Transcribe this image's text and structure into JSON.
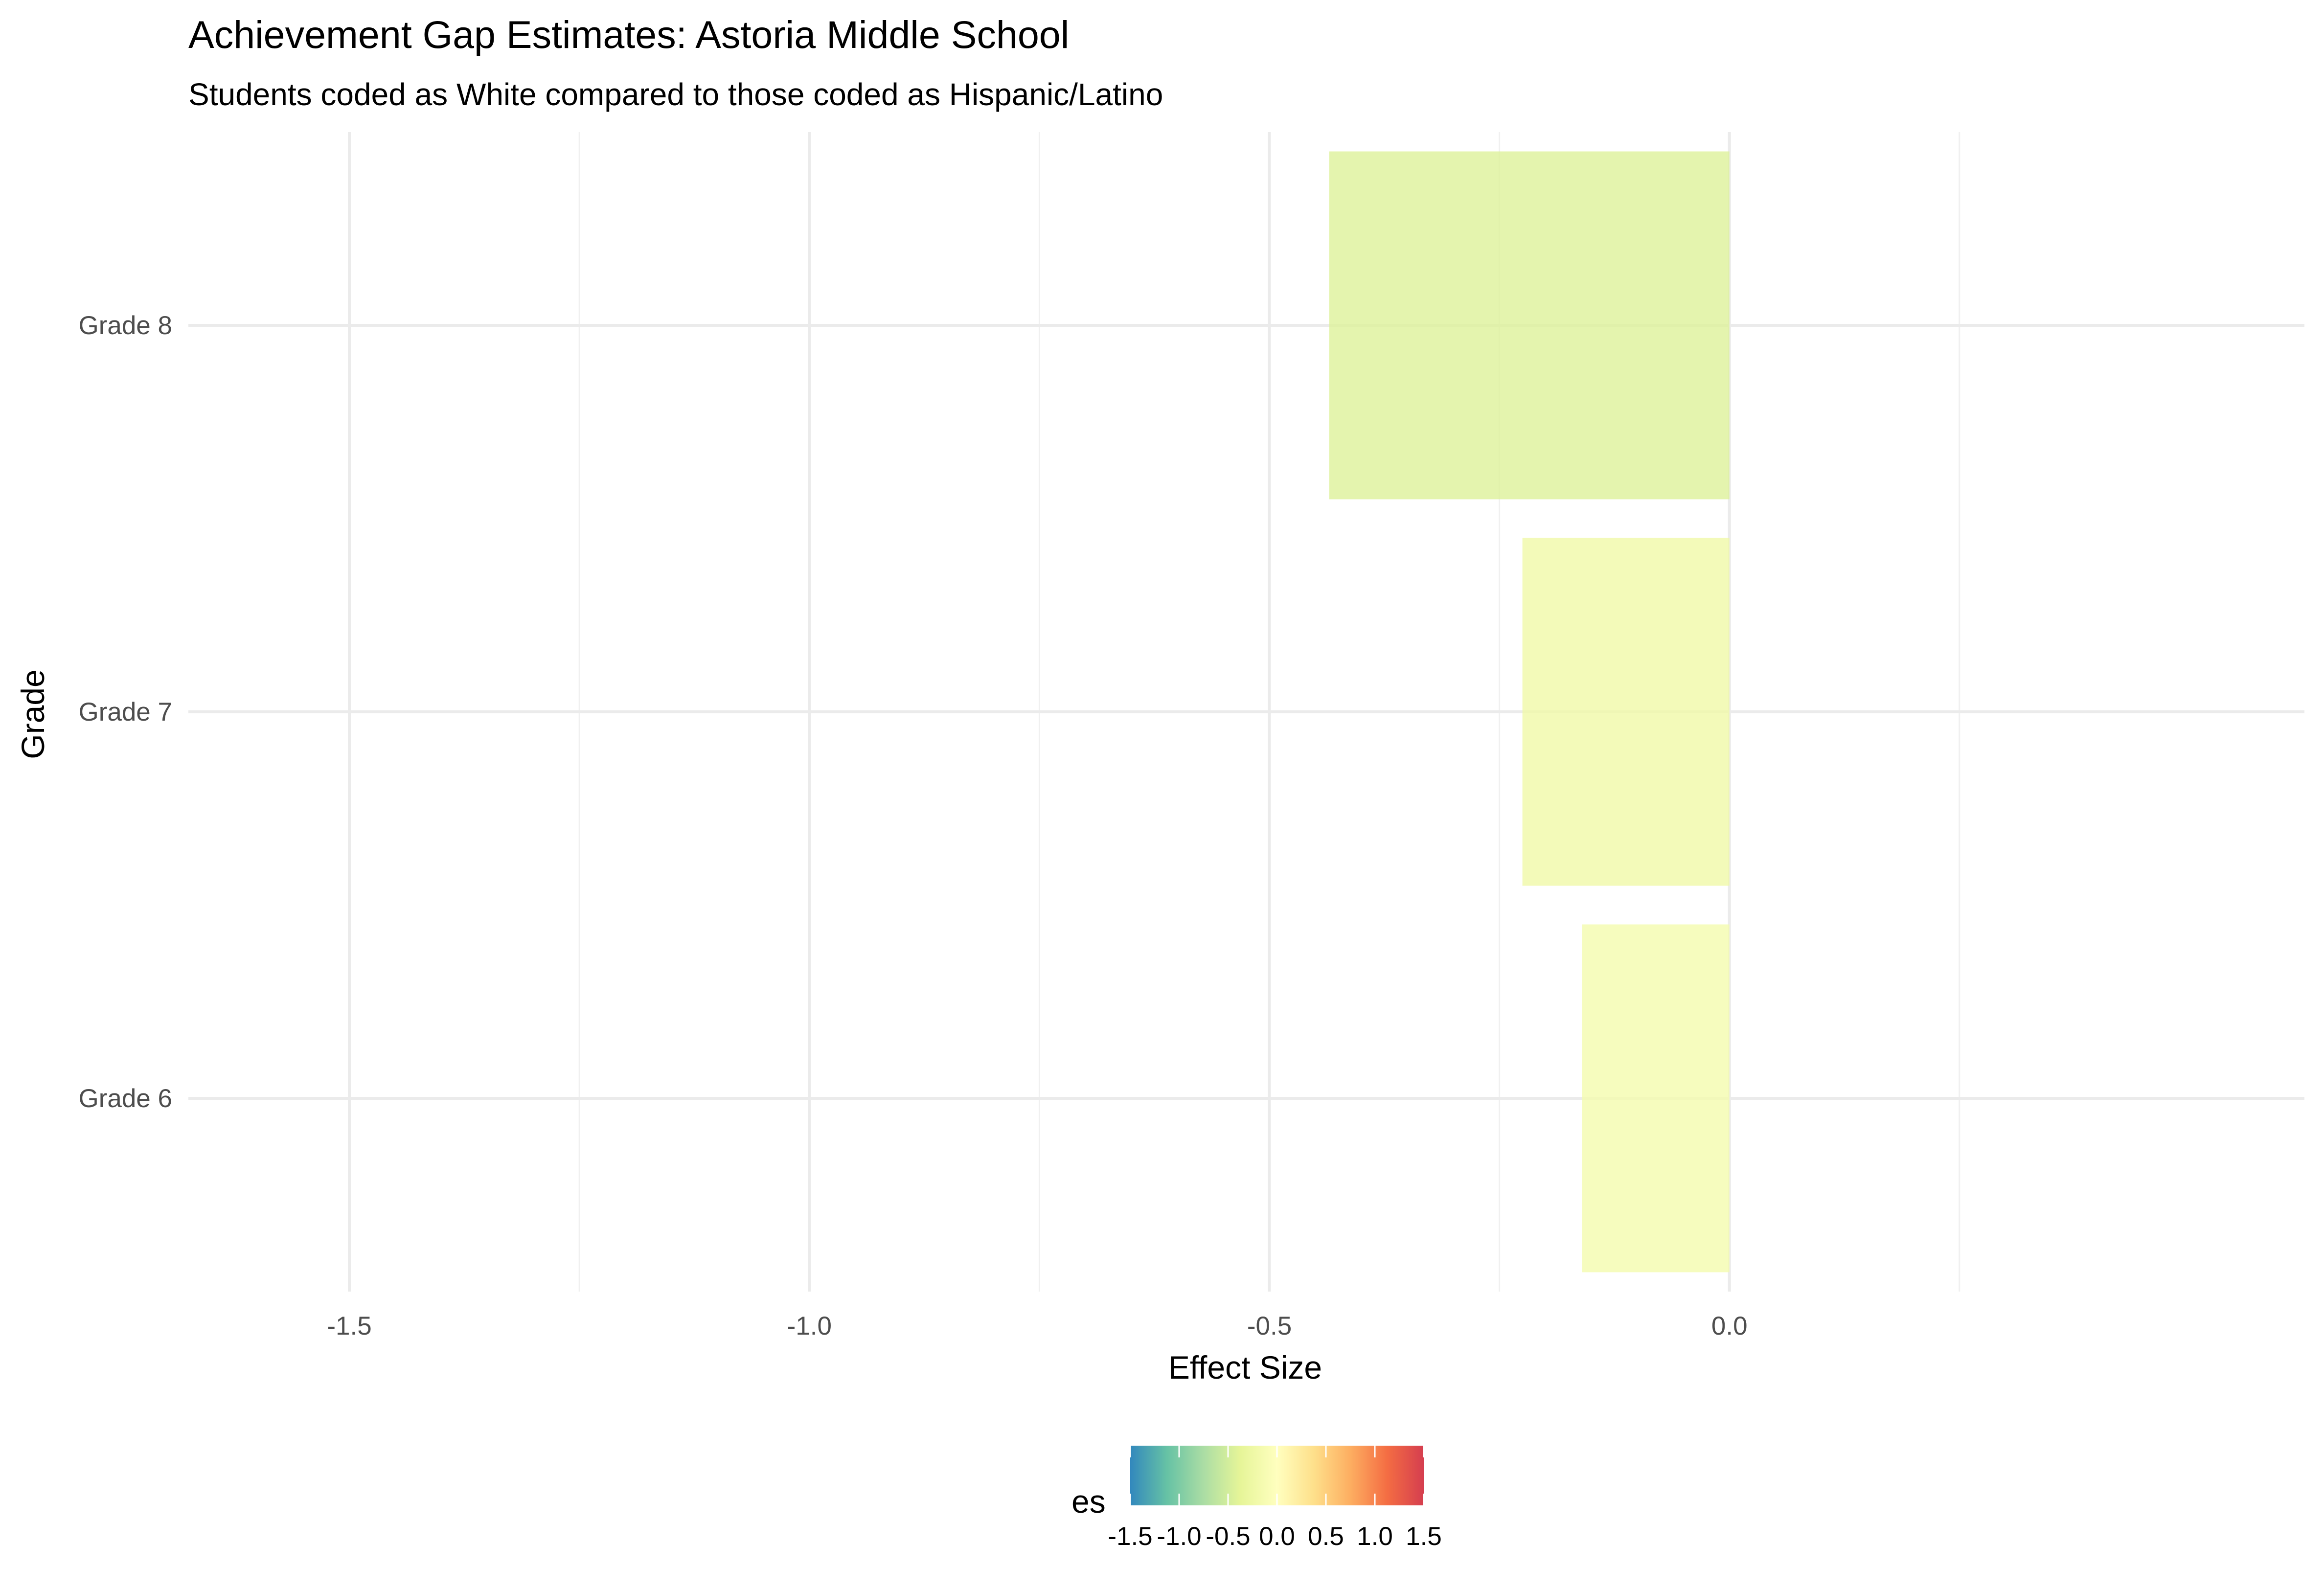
{
  "chart_data": {
    "type": "bar",
    "orientation": "horizontal",
    "title": "Achievement Gap Estimates: Astoria Middle School",
    "subtitle": "Students coded as White compared to those coded as Hispanic/Latino",
    "xlabel": "Effect Size",
    "ylabel": "Grade",
    "categories": [
      "Grade 6",
      "Grade 7",
      "Grade 8"
    ],
    "values": [
      -0.16,
      -0.225,
      -0.435
    ],
    "xlim": [
      -1.5,
      0.25
    ],
    "x_ticks": [
      -1.5,
      -1.0,
      -0.5,
      0.0
    ],
    "x_tick_labels": [
      "-1.5",
      "-1.0",
      "-0.5",
      "0.0"
    ],
    "grid": true,
    "color_scale": {
      "title": "es",
      "palette": "Spectral",
      "range": [
        -1.5,
        1.5
      ],
      "ticks": [
        -1.5,
        -1.0,
        -0.5,
        0.0,
        0.5,
        1.0,
        1.5
      ],
      "tick_labels": [
        "-1.5",
        "-1.0",
        "-0.5",
        "0.0",
        "0.5",
        "1.0",
        "1.5"
      ],
      "colors": [
        "#3288bd",
        "#66c2a5",
        "#abdda4",
        "#e6f598",
        "#ffffbf",
        "#fee08b",
        "#fdae61",
        "#f46d43",
        "#d53e4f"
      ]
    },
    "legend_position": "bottom"
  }
}
